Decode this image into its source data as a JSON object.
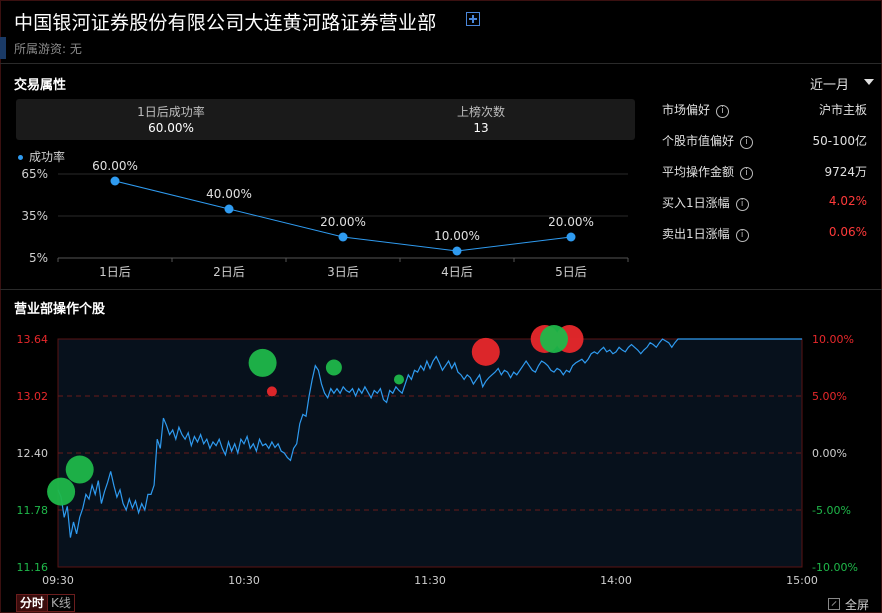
{
  "header": {
    "title": "中国银河证券股份有限公司大连黄河路证券营业部",
    "subtitle": "所属游资: 无"
  },
  "trade_section": {
    "title": "交易属性",
    "period": "近一月",
    "stats": [
      {
        "label": "1日后成功率",
        "value": "60.00%"
      },
      {
        "label": "上榜次数",
        "value": "13"
      }
    ],
    "legend": "成功率"
  },
  "right_panel": [
    {
      "label": "市场偏好",
      "value": "沪市主板",
      "red": false
    },
    {
      "label": "个股市值偏好",
      "value": "50-100亿",
      "red": false
    },
    {
      "label": "平均操作金额",
      "value": "9724万",
      "red": false
    },
    {
      "label": "买入1日涨幅",
      "value": "4.02%",
      "red": true
    },
    {
      "label": "卖出1日涨幅",
      "value": "0.06%",
      "red": true
    }
  ],
  "stocks_section": {
    "title": "营业部操作个股",
    "tabs": [
      "分时",
      "K线"
    ],
    "fullscreen": "全屏"
  },
  "chart_data": [
    {
      "type": "line",
      "title": "",
      "series": [
        {
          "name": "成功率",
          "values": [
            60.0,
            40.0,
            20.0,
            10.0,
            20.0
          ]
        }
      ],
      "categories": [
        "1日后",
        "2日后",
        "3日后",
        "4日后",
        "5日后"
      ],
      "data_labels": [
        "60.00%",
        "40.00%",
        "20.00%",
        "10.00%",
        "20.00%"
      ],
      "y_ticks": [
        "65%",
        "35%",
        "5%"
      ],
      "ylim": [
        5,
        65
      ],
      "colors": {
        "line": "#2f9bf0"
      }
    },
    {
      "type": "line",
      "title": "",
      "x_ticks": [
        "09:30",
        "10:30",
        "11:30",
        "14:00",
        "15:00"
      ],
      "y_ticks_left": [
        "13.64",
        "13.02",
        "12.40",
        "11.78",
        "11.16"
      ],
      "y_ticks_right": [
        "10.00%",
        "5.00%",
        "0.00%",
        "-5.00%",
        "-10.00%"
      ],
      "ylim": [
        11.16,
        13.64
      ],
      "prev_close": 12.4,
      "price_series": [
        [
          0,
          12.0
        ],
        [
          1,
          11.92
        ],
        [
          2,
          11.7
        ],
        [
          3,
          11.82
        ],
        [
          4,
          11.48
        ],
        [
          5,
          11.65
        ],
        [
          6,
          11.52
        ],
        [
          7,
          11.7
        ],
        [
          8,
          11.8
        ],
        [
          9,
          11.95
        ],
        [
          10,
          11.9
        ],
        [
          11,
          12.05
        ],
        [
          12,
          11.95
        ],
        [
          13,
          12.1
        ],
        [
          14,
          11.85
        ],
        [
          15,
          11.98
        ],
        [
          16,
          12.08
        ],
        [
          17,
          12.2
        ],
        [
          18,
          12.05
        ],
        [
          19,
          11.92
        ],
        [
          20,
          12.0
        ],
        [
          21,
          11.85
        ],
        [
          22,
          11.78
        ],
        [
          23,
          11.9
        ],
        [
          24,
          11.8
        ],
        [
          25,
          11.88
        ],
        [
          26,
          11.75
        ],
        [
          27,
          11.85
        ],
        [
          28,
          11.78
        ],
        [
          29,
          11.95
        ],
        [
          30,
          11.95
        ],
        [
          31,
          12.05
        ],
        [
          32,
          12.55
        ],
        [
          33,
          12.45
        ],
        [
          34,
          12.78
        ],
        [
          35,
          12.7
        ],
        [
          36,
          12.6
        ],
        [
          37,
          12.65
        ],
        [
          38,
          12.55
        ],
        [
          39,
          12.68
        ],
        [
          40,
          12.6
        ],
        [
          41,
          12.55
        ],
        [
          42,
          12.62
        ],
        [
          43,
          12.48
        ],
        [
          44,
          12.58
        ],
        [
          45,
          12.52
        ],
        [
          46,
          12.6
        ],
        [
          47,
          12.5
        ],
        [
          48,
          12.55
        ],
        [
          49,
          12.45
        ],
        [
          50,
          12.52
        ],
        [
          51,
          12.48
        ],
        [
          52,
          12.55
        ],
        [
          53,
          12.45
        ],
        [
          54,
          12.38
        ],
        [
          55,
          12.52
        ],
        [
          56,
          12.42
        ],
        [
          57,
          12.5
        ],
        [
          58,
          12.4
        ],
        [
          59,
          12.55
        ],
        [
          60,
          12.5
        ],
        [
          61,
          12.58
        ],
        [
          62,
          12.45
        ],
        [
          63,
          12.5
        ],
        [
          64,
          12.42
        ],
        [
          65,
          12.55
        ],
        [
          66,
          12.48
        ],
        [
          67,
          12.5
        ],
        [
          68,
          12.45
        ],
        [
          69,
          12.52
        ],
        [
          70,
          12.46
        ],
        [
          71,
          12.5
        ],
        [
          72,
          12.42
        ],
        [
          73,
          12.4
        ],
        [
          74,
          12.35
        ],
        [
          75,
          12.32
        ],
        [
          76,
          12.45
        ],
        [
          77,
          12.5
        ],
        [
          78,
          12.72
        ],
        [
          79,
          12.82
        ],
        [
          80,
          12.8
        ],
        [
          81,
          13.02
        ],
        [
          82,
          13.2
        ],
        [
          83,
          13.35
        ],
        [
          84,
          13.3
        ],
        [
          85,
          13.15
        ],
        [
          86,
          13.05
        ],
        [
          87,
          13.0
        ],
        [
          88,
          13.1
        ],
        [
          89,
          13.05
        ],
        [
          90,
          13.1
        ],
        [
          91,
          13.05
        ],
        [
          92,
          13.12
        ],
        [
          93,
          13.08
        ],
        [
          94,
          13.06
        ],
        [
          95,
          13.1
        ],
        [
          96,
          13.02
        ],
        [
          97,
          13.1
        ],
        [
          98,
          13.05
        ],
        [
          99,
          13.12
        ],
        [
          100,
          13.06
        ],
        [
          101,
          13.0
        ],
        [
          102,
          13.08
        ],
        [
          103,
          13.05
        ],
        [
          104,
          13.1
        ],
        [
          105,
          12.98
        ],
        [
          106,
          12.95
        ],
        [
          107,
          13.08
        ],
        [
          108,
          13.05
        ],
        [
          109,
          13.12
        ],
        [
          110,
          13.08
        ],
        [
          111,
          13.05
        ],
        [
          112,
          13.15
        ],
        [
          113,
          13.25
        ],
        [
          114,
          13.2
        ],
        [
          115,
          13.3
        ],
        [
          116,
          13.28
        ],
        [
          117,
          13.35
        ],
        [
          118,
          13.3
        ],
        [
          119,
          13.4
        ],
        [
          120,
          13.32
        ],
        [
          121,
          13.4
        ],
        [
          122,
          13.45
        ],
        [
          123,
          13.38
        ],
        [
          124,
          13.3
        ],
        [
          125,
          13.35
        ],
        [
          126,
          13.4
        ],
        [
          127,
          13.32
        ],
        [
          128,
          13.38
        ],
        [
          129,
          13.28
        ],
        [
          130,
          13.25
        ],
        [
          131,
          13.2
        ],
        [
          132,
          13.25
        ],
        [
          133,
          13.22
        ],
        [
          134,
          13.15
        ],
        [
          135,
          13.2
        ],
        [
          136,
          13.25
        ],
        [
          137,
          13.12
        ],
        [
          138,
          13.18
        ],
        [
          139,
          13.22
        ],
        [
          140,
          13.25
        ],
        [
          141,
          13.28
        ],
        [
          142,
          13.32
        ],
        [
          143,
          13.25
        ],
        [
          144,
          13.3
        ],
        [
          145,
          13.28
        ],
        [
          146,
          13.22
        ],
        [
          147,
          13.28
        ],
        [
          148,
          13.25
        ],
        [
          149,
          13.3
        ],
        [
          150,
          13.35
        ],
        [
          151,
          13.4
        ],
        [
          152,
          13.35
        ],
        [
          153,
          13.3
        ],
        [
          154,
          13.28
        ],
        [
          155,
          13.35
        ],
        [
          156,
          13.4
        ],
        [
          157,
          13.38
        ],
        [
          158,
          13.35
        ],
        [
          159,
          13.3
        ],
        [
          160,
          13.28
        ],
        [
          161,
          13.32
        ],
        [
          162,
          13.3
        ],
        [
          163,
          13.25
        ],
        [
          164,
          13.3
        ],
        [
          165,
          13.28
        ],
        [
          166,
          13.35
        ],
        [
          167,
          13.38
        ],
        [
          168,
          13.4
        ],
        [
          169,
          13.42
        ],
        [
          170,
          13.38
        ],
        [
          171,
          13.42
        ],
        [
          172,
          13.48
        ],
        [
          173,
          13.5
        ],
        [
          174,
          13.48
        ],
        [
          175,
          13.52
        ],
        [
          176,
          13.55
        ],
        [
          177,
          13.5
        ],
        [
          178,
          13.52
        ],
        [
          179,
          13.48
        ],
        [
          180,
          13.5
        ],
        [
          181,
          13.55
        ],
        [
          182,
          13.52
        ],
        [
          183,
          13.5
        ],
        [
          184,
          13.55
        ],
        [
          185,
          13.58
        ],
        [
          186,
          13.55
        ],
        [
          187,
          13.52
        ],
        [
          188,
          13.48
        ],
        [
          189,
          13.52
        ],
        [
          190,
          13.55
        ],
        [
          191,
          13.6
        ],
        [
          192,
          13.58
        ],
        [
          193,
          13.55
        ],
        [
          194,
          13.6
        ],
        [
          195,
          13.64
        ],
        [
          196,
          13.62
        ],
        [
          197,
          13.6
        ],
        [
          198,
          13.55
        ],
        [
          199,
          13.6
        ],
        [
          200,
          13.64
        ],
        [
          201,
          13.64
        ],
        [
          202,
          13.64
        ],
        [
          203,
          13.64
        ],
        [
          204,
          13.64
        ],
        [
          205,
          13.64
        ],
        [
          206,
          13.64
        ],
        [
          207,
          13.64
        ],
        [
          208,
          13.64
        ],
        [
          209,
          13.64
        ],
        [
          210,
          13.64
        ],
        [
          220,
          13.64
        ],
        [
          230,
          13.64
        ],
        [
          240,
          13.64
        ]
      ],
      "markers": [
        {
          "t": 1,
          "price": 11.98,
          "type": "buy",
          "size": "large"
        },
        {
          "t": 7,
          "price": 12.22,
          "type": "buy",
          "size": "large"
        },
        {
          "t": 66,
          "price": 13.38,
          "type": "buy",
          "size": "large"
        },
        {
          "t": 69,
          "price": 13.07,
          "type": "sell",
          "size": "small"
        },
        {
          "t": 89,
          "price": 13.33,
          "type": "buy",
          "size": "medium"
        },
        {
          "t": 110,
          "price": 13.2,
          "type": "buy",
          "size": "small"
        },
        {
          "t": 138,
          "price": 13.5,
          "type": "sell",
          "size": "large"
        },
        {
          "t": 157,
          "price": 13.64,
          "type": "sell",
          "size": "large"
        },
        {
          "t": 165,
          "price": 13.64,
          "type": "sell",
          "size": "large"
        },
        {
          "t": 160,
          "price": 13.64,
          "type": "buy",
          "size": "large"
        }
      ],
      "colors": {
        "line": "#2f9bf0",
        "buy": "#1fb84a",
        "sell": "#e8282b"
      }
    }
  ]
}
